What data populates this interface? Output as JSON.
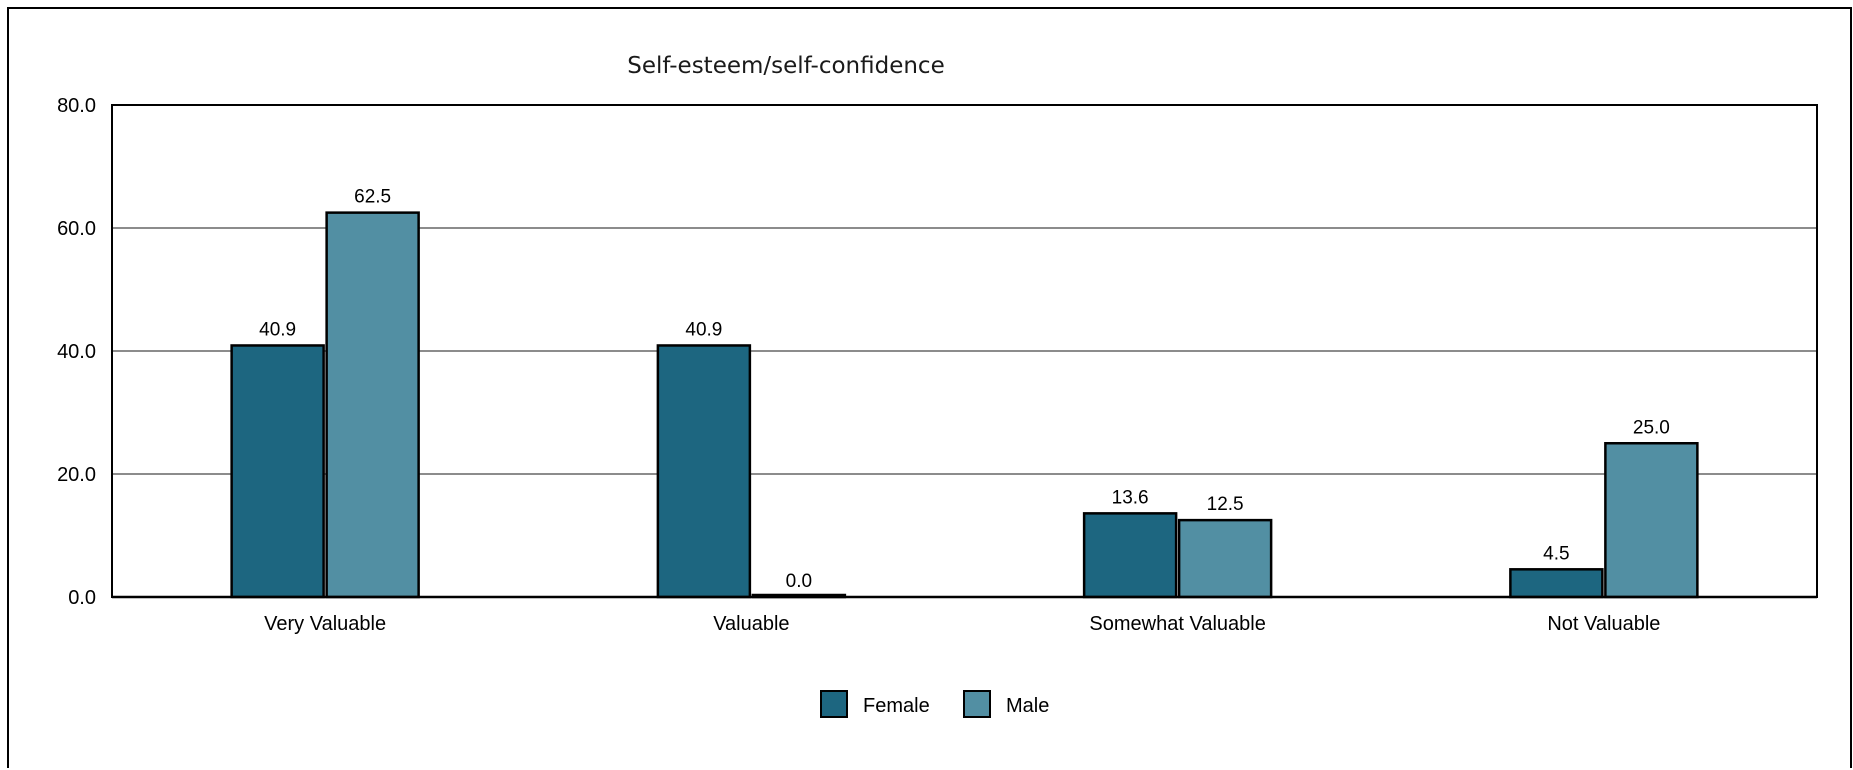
{
  "chart_data": {
    "type": "bar",
    "title": "Self-esteem/self-confidence",
    "xlabel": "",
    "ylabel": "",
    "categories": [
      "Very Valuable",
      "Valuable",
      "Somewhat Valuable",
      "Not Valuable"
    ],
    "series": [
      {
        "name": "Female",
        "values": [
          40.9,
          40.9,
          13.6,
          4.5
        ],
        "color": "#1d6680"
      },
      {
        "name": "Male",
        "values": [
          62.5,
          0.0,
          12.5,
          25.0
        ],
        "color": "#528fa3"
      }
    ],
    "data_labels": [
      [
        "40.9",
        "40.9",
        "13.6",
        "4.5"
      ],
      [
        "62.5",
        "0.0",
        "12.5",
        "25.0"
      ]
    ],
    "ylim": [
      0,
      80
    ],
    "yticks": [
      "0.0",
      "20.0",
      "40.0",
      "60.0",
      "80.0"
    ],
    "grid": true,
    "legend": "bottom-center",
    "colors": {
      "gridline": "#8c8c8c",
      "axis": "#000000",
      "bar_border": "#000000"
    }
  }
}
